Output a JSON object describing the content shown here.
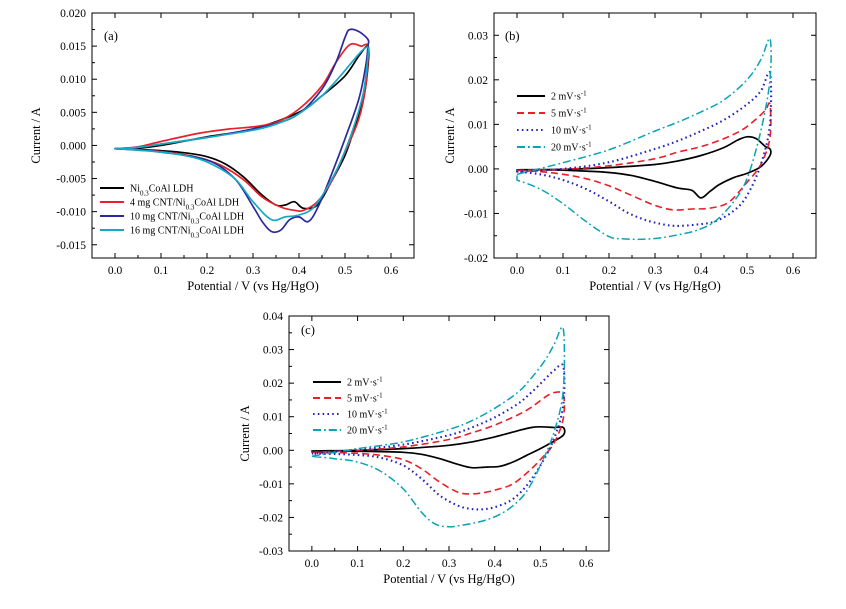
{
  "colors": {
    "black": "#000000",
    "red": "#e8202a",
    "navy": "#2b2a9b",
    "cyan": "#16a9c4",
    "blue": "#2424c0",
    "teal": "#0aa3b5"
  },
  "chart_data": [
    {
      "panel": "(a)",
      "type": "line",
      "xlabel": "Potential / V (vs Hg/HgO)",
      "ylabel": "Current / A",
      "xlim": [
        -0.05,
        0.65
      ],
      "ylim": [
        -0.017,
        0.02
      ],
      "xticks": [
        "0.0",
        "0.1",
        "0.2",
        "0.3",
        "0.4",
        "0.5",
        "0.6"
      ],
      "yticks": [
        "-0.015",
        "-0.010",
        "-0.005",
        "0.000",
        "0.005",
        "0.010",
        "0.015",
        "0.020"
      ],
      "legend_position": "bottom-left",
      "series": [
        {
          "name": "Ni0.3CoAl LDH",
          "color": "black",
          "dash": "solid",
          "x": [
            0.0,
            0.05,
            0.1,
            0.2,
            0.3,
            0.4,
            0.45,
            0.5,
            0.53,
            0.55,
            0.55,
            0.54,
            0.52,
            0.5,
            0.47,
            0.44,
            0.41,
            0.39,
            0.37,
            0.35,
            0.32,
            0.28,
            0.24,
            0.2,
            0.15,
            0.1,
            0.05,
            0.0
          ],
          "y": [
            -0.0005,
            -0.0004,
            0.0,
            0.0013,
            0.0025,
            0.005,
            0.0075,
            0.0105,
            0.0135,
            0.015,
            0.012,
            0.007,
            0.0025,
            -0.0015,
            -0.0055,
            -0.009,
            -0.0095,
            -0.0085,
            -0.009,
            -0.009,
            -0.0075,
            -0.0048,
            -0.0028,
            -0.0017,
            -0.0011,
            -0.0008,
            -0.0006,
            -0.0005
          ]
        },
        {
          "name": "4 mg CNT/Ni0.3CoAl LDH",
          "color": "red",
          "dash": "solid",
          "x": [
            0.0,
            0.05,
            0.1,
            0.18,
            0.25,
            0.3,
            0.35,
            0.4,
            0.45,
            0.48,
            0.51,
            0.535,
            0.55,
            0.545,
            0.53,
            0.5,
            0.47,
            0.44,
            0.41,
            0.39,
            0.36,
            0.32,
            0.28,
            0.23,
            0.18,
            0.12,
            0.06,
            0.0
          ],
          "y": [
            -0.0005,
            -0.0002,
            0.0006,
            0.0018,
            0.0025,
            0.0028,
            0.0035,
            0.0055,
            0.009,
            0.0125,
            0.0152,
            0.015,
            0.0148,
            0.009,
            0.004,
            -0.001,
            -0.0055,
            -0.0085,
            -0.0098,
            -0.0098,
            -0.0093,
            -0.0078,
            -0.0052,
            -0.003,
            -0.0018,
            -0.0011,
            -0.0007,
            -0.0005
          ]
        },
        {
          "name": "10 mg CNT/Ni0.3CoAl LDH",
          "color": "navy",
          "dash": "solid",
          "x": [
            0.0,
            0.05,
            0.1,
            0.2,
            0.3,
            0.35,
            0.4,
            0.45,
            0.48,
            0.5,
            0.51,
            0.53,
            0.55,
            0.55,
            0.545,
            0.53,
            0.5,
            0.47,
            0.44,
            0.42,
            0.4,
            0.38,
            0.36,
            0.34,
            0.32,
            0.3,
            0.26,
            0.2,
            0.1,
            0.05,
            0.0
          ],
          "y": [
            -0.0005,
            -0.0003,
            0.0002,
            0.0012,
            0.0025,
            0.0033,
            0.0048,
            0.0085,
            0.0125,
            0.0163,
            0.0175,
            0.0172,
            0.016,
            0.015,
            0.012,
            0.007,
            0.001,
            -0.0045,
            -0.0095,
            -0.0115,
            -0.0108,
            -0.0112,
            -0.0128,
            -0.013,
            -0.0115,
            -0.0092,
            -0.005,
            -0.0022,
            -0.001,
            -0.0007,
            -0.0005
          ]
        },
        {
          "name": "16 mg CNT/Ni0.3CoAl LDH",
          "color": "cyan",
          "dash": "solid",
          "x": [
            0.0,
            0.05,
            0.1,
            0.2,
            0.3,
            0.35,
            0.4,
            0.45,
            0.49,
            0.52,
            0.54,
            0.55,
            0.55,
            0.54,
            0.52,
            0.49,
            0.46,
            0.43,
            0.4,
            0.37,
            0.34,
            0.3,
            0.26,
            0.2,
            0.15,
            0.1,
            0.05,
            0.0
          ],
          "y": [
            -0.0005,
            -0.0003,
            0.0002,
            0.0012,
            0.0023,
            0.0032,
            0.0048,
            0.0075,
            0.0105,
            0.013,
            0.0145,
            0.0148,
            0.0135,
            0.008,
            0.003,
            -0.0025,
            -0.0065,
            -0.0095,
            -0.0105,
            -0.0108,
            -0.0112,
            -0.0085,
            -0.005,
            -0.0025,
            -0.0015,
            -0.001,
            -0.0007,
            -0.0005
          ]
        }
      ]
    },
    {
      "panel": "(b)",
      "type": "line",
      "xlabel": "Potential / V (vs Hg/HgO)",
      "ylabel": "Current / A",
      "xlim": [
        -0.05,
        0.65
      ],
      "ylim": [
        -0.02,
        0.035
      ],
      "xticks": [
        "0.0",
        "0.1",
        "0.2",
        "0.3",
        "0.4",
        "0.5",
        "0.6"
      ],
      "yticks": [
        "-0.02",
        "-0.01",
        "0.00",
        "0.01",
        "0.02",
        "0.03"
      ],
      "legend_position": "left",
      "series": [
        {
          "name": "2 mV·s⁻¹",
          "color": "black",
          "dash": "solid",
          "x": [
            0.0,
            0.1,
            0.2,
            0.3,
            0.35,
            0.4,
            0.45,
            0.48,
            0.5,
            0.52,
            0.54,
            0.55,
            0.55,
            0.53,
            0.5,
            0.47,
            0.44,
            0.42,
            0.4,
            0.38,
            0.35,
            0.3,
            0.25,
            0.2,
            0.15,
            0.1,
            0.05,
            0.0
          ],
          "y": [
            -0.0002,
            -0.0001,
            0.0003,
            0.001,
            0.0018,
            0.003,
            0.0048,
            0.0065,
            0.0072,
            0.0068,
            0.005,
            0.0045,
            0.003,
            0.0005,
            -0.001,
            -0.002,
            -0.0035,
            -0.005,
            -0.0065,
            -0.0048,
            -0.0043,
            -0.0028,
            -0.0015,
            -0.0008,
            -0.0005,
            -0.0003,
            -0.0002,
            -0.0002
          ]
        },
        {
          "name": "5 mV·s⁻¹",
          "color": "red",
          "dash": "dashed",
          "x": [
            0.0,
            0.1,
            0.2,
            0.3,
            0.35,
            0.4,
            0.45,
            0.49,
            0.52,
            0.54,
            0.55,
            0.55,
            0.53,
            0.5,
            0.46,
            0.42,
            0.38,
            0.34,
            0.3,
            0.25,
            0.2,
            0.15,
            0.1,
            0.05,
            0.0
          ],
          "y": [
            -0.0003,
            -0.0001,
            0.0007,
            0.0023,
            0.0038,
            0.005,
            0.0068,
            0.0088,
            0.0112,
            0.0132,
            0.0145,
            0.007,
            0.001,
            -0.003,
            -0.0075,
            -0.0088,
            -0.009,
            -0.0092,
            -0.0082,
            -0.006,
            -0.0038,
            -0.0022,
            -0.0012,
            -0.0006,
            -0.0003
          ]
        },
        {
          "name": "10 mV·s⁻¹",
          "color": "blue",
          "dash": "dotted",
          "x": [
            0.0,
            0.1,
            0.2,
            0.3,
            0.35,
            0.4,
            0.45,
            0.5,
            0.53,
            0.55,
            0.55,
            0.53,
            0.5,
            0.47,
            0.43,
            0.39,
            0.35,
            0.32,
            0.28,
            0.24,
            0.2,
            0.15,
            0.1,
            0.05,
            0.0
          ],
          "y": [
            -0.0006,
            0.0,
            0.0015,
            0.0045,
            0.0063,
            0.0085,
            0.011,
            0.0145,
            0.0175,
            0.0215,
            0.01,
            0.001,
            -0.006,
            -0.0095,
            -0.0118,
            -0.0125,
            -0.0128,
            -0.0125,
            -0.0115,
            -0.0098,
            -0.0073,
            -0.0045,
            -0.0025,
            -0.0012,
            -0.0006
          ]
        },
        {
          "name": "20 mV·s⁻¹",
          "color": "teal",
          "dash": "dashdot",
          "x": [
            0.0,
            0.1,
            0.2,
            0.3,
            0.35,
            0.4,
            0.45,
            0.5,
            0.53,
            0.55,
            0.55,
            0.53,
            0.5,
            0.47,
            0.43,
            0.39,
            0.35,
            0.31,
            0.27,
            0.23,
            0.2,
            0.15,
            0.1,
            0.05,
            0.0
          ],
          "y": [
            -0.0012,
            0.0014,
            0.0043,
            0.0085,
            0.0105,
            0.0128,
            0.0155,
            0.02,
            0.0245,
            0.0292,
            0.02,
            0.0085,
            -0.0022,
            -0.0075,
            -0.0118,
            -0.0138,
            -0.0148,
            -0.0155,
            -0.0158,
            -0.0157,
            -0.0152,
            -0.0118,
            -0.0078,
            -0.0045,
            -0.0025
          ]
        }
      ]
    },
    {
      "panel": "(c)",
      "type": "line",
      "xlabel": "Potential / V (vs Hg/HgO)",
      "ylabel": "Current / A",
      "xlim": [
        -0.05,
        0.65
      ],
      "ylim": [
        -0.03,
        0.04
      ],
      "xticks": [
        "0.0",
        "0.1",
        "0.2",
        "0.3",
        "0.4",
        "0.5",
        "0.6"
      ],
      "yticks": [
        "-0.03",
        "-0.02",
        "-0.01",
        "0.00",
        "0.01",
        "0.02",
        "0.03",
        "0.04"
      ],
      "legend_position": "left",
      "series": [
        {
          "name": "2 mV·s⁻¹",
          "color": "black",
          "dash": "solid",
          "x": [
            0.0,
            0.1,
            0.2,
            0.3,
            0.35,
            0.4,
            0.45,
            0.48,
            0.5,
            0.53,
            0.55,
            0.55,
            0.52,
            0.5,
            0.47,
            0.44,
            0.41,
            0.38,
            0.35,
            0.32,
            0.28,
            0.24,
            0.2,
            0.15,
            0.1,
            0.05,
            0.0
          ],
          "y": [
            -0.0002,
            0.0,
            0.0005,
            0.0015,
            0.0025,
            0.004,
            0.0058,
            0.0068,
            0.007,
            0.0068,
            0.0068,
            0.0045,
            0.002,
            0.0005,
            -0.0015,
            -0.0035,
            -0.0048,
            -0.005,
            -0.0052,
            -0.0042,
            -0.0025,
            -0.0012,
            -0.0006,
            -0.0004,
            -0.0003,
            -0.0002,
            -0.0002
          ]
        },
        {
          "name": "5 mV·s⁻¹",
          "color": "red",
          "dash": "dashed",
          "x": [
            0.0,
            0.1,
            0.2,
            0.3,
            0.35,
            0.4,
            0.45,
            0.48,
            0.51,
            0.53,
            0.55,
            0.55,
            0.53,
            0.5,
            0.47,
            0.44,
            0.41,
            0.38,
            0.35,
            0.32,
            0.28,
            0.24,
            0.2,
            0.15,
            0.1,
            0.05,
            0.0
          ],
          "y": [
            -0.0006,
            0.0,
            0.001,
            0.0032,
            0.0052,
            0.0075,
            0.0105,
            0.0128,
            0.0158,
            0.0172,
            0.0165,
            0.0095,
            0.0022,
            -0.0028,
            -0.0068,
            -0.01,
            -0.0115,
            -0.0125,
            -0.013,
            -0.0125,
            -0.0095,
            -0.0055,
            -0.0028,
            -0.0015,
            -0.0009,
            -0.0007,
            -0.0006
          ]
        },
        {
          "name": "10 mV·s⁻¹",
          "color": "blue",
          "dash": "dotted",
          "x": [
            0.0,
            0.1,
            0.2,
            0.3,
            0.35,
            0.4,
            0.45,
            0.48,
            0.51,
            0.53,
            0.55,
            0.55,
            0.53,
            0.5,
            0.47,
            0.44,
            0.41,
            0.38,
            0.35,
            0.32,
            0.28,
            0.24,
            0.2,
            0.15,
            0.1,
            0.05,
            0.0
          ],
          "y": [
            -0.001,
            0.0002,
            0.0017,
            0.0045,
            0.0068,
            0.0098,
            0.0138,
            0.0172,
            0.0212,
            0.0238,
            0.025,
            0.0135,
            0.0035,
            -0.0045,
            -0.0105,
            -0.0145,
            -0.0165,
            -0.0175,
            -0.0175,
            -0.0165,
            -0.0135,
            -0.0085,
            -0.0045,
            -0.0022,
            -0.0014,
            -0.0011,
            -0.001
          ]
        },
        {
          "name": "20 mV·s⁻¹",
          "color": "teal",
          "dash": "dashdot",
          "x": [
            0.0,
            0.1,
            0.2,
            0.3,
            0.35,
            0.4,
            0.45,
            0.48,
            0.51,
            0.53,
            0.55,
            0.55,
            0.53,
            0.5,
            0.47,
            0.44,
            0.41,
            0.38,
            0.35,
            0.32,
            0.3,
            0.27,
            0.24,
            0.2,
            0.15,
            0.1,
            0.05,
            0.0
          ],
          "y": [
            -0.0018,
            0.0005,
            0.0025,
            0.0062,
            0.0088,
            0.0125,
            0.0172,
            0.0215,
            0.0268,
            0.0315,
            0.0362,
            0.018,
            0.0055,
            -0.0045,
            -0.0122,
            -0.0165,
            -0.0192,
            -0.0208,
            -0.0218,
            -0.0225,
            -0.0228,
            -0.022,
            -0.0185,
            -0.0115,
            -0.0062,
            -0.0035,
            -0.0025,
            -0.0018
          ]
        }
      ]
    }
  ]
}
